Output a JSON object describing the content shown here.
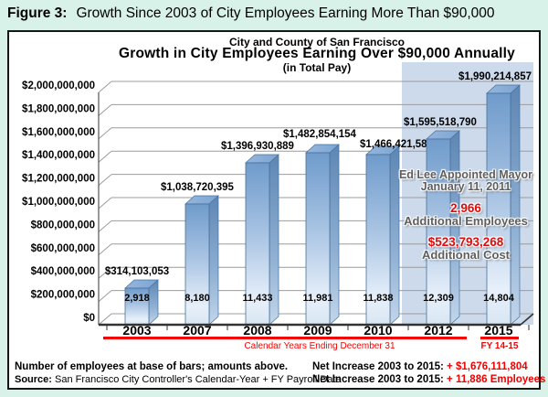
{
  "figure_title": {
    "label": "Figure 3:",
    "text": "Growth Since 2003 of City Employees Earning More Than $90,000"
  },
  "chart_titles": {
    "line1": "City and County of San Francisco",
    "line2": "Growth in City Employees Earning Over $90,000 Annually",
    "line3": "(in Total Pay)"
  },
  "chart_data": {
    "type": "bar",
    "title": "Growth in City Employees Earning Over $90,000 Annually (in Total Pay)",
    "categories": [
      "2003",
      "2007",
      "2008",
      "2009",
      "2010",
      "2012",
      "2015"
    ],
    "values": [
      314103053,
      1038720395,
      1396930889,
      1482854154,
      1466421588,
      1595518790,
      1990214857
    ],
    "value_labels": [
      "$314,103,053",
      "$1,038,720,395",
      "$1,396,930,889",
      "$1,482,854,154",
      "$1,466,421,588",
      "$1,595,518,790",
      "$1,990,214,857"
    ],
    "employee_counts": [
      "2,918",
      "8,180",
      "11,433",
      "11,981",
      "11,838",
      "12,309",
      "14,804"
    ],
    "y_ticks": [
      "$0",
      "$200,000,000",
      "$400,000,000",
      "$600,000,000",
      "$800,000,000",
      "$1,000,000,000",
      "$1,200,000,000",
      "$1,400,000,000",
      "$1,600,000,000",
      "$1,800,000,000",
      "$2,000,000,000"
    ],
    "ylim": [
      0,
      2000000000
    ],
    "xlabel": "Calendar Years Ending December 31",
    "highlighted_categories": [
      "2012",
      "2015"
    ],
    "legend": "none",
    "grid": "horizontal"
  },
  "axis_footnotes": {
    "calendar_label": "Calendar Years Ending December 31",
    "fy_label": "FY 14-15"
  },
  "annotation": {
    "line1": "Ed Lee Appointed Mayor",
    "line2": "January  11, 2011",
    "employees_value": "2,966",
    "employees_label": "Additional Employees",
    "cost_value": "$523,793,268",
    "cost_label": "Additional Cost"
  },
  "footer": {
    "note": "Number of employees at base of bars; amounts above.",
    "source_label": "Source:",
    "source_text": "San Francisco City Controller's Calendar-Year + FY Payroll Data",
    "net_cost_label": "Net Increase 2003 to 2015:",
    "net_cost_value": "+ $1,676,111,804",
    "net_emp_label": "Net Increase 2003 to 2015:",
    "net_emp_value": "+ 11,886 Employees"
  },
  "colors": {
    "page_background": "#d9f2e9",
    "chart_background": "#ffffff",
    "highlight_band": "#ccdaeb",
    "bar_front_top": "#6f9bcb",
    "bar_front_bottom": "#d8e6f3",
    "bar_outline": "#46719e",
    "gridline": "#9c9c9c",
    "accent_red": "#f40000",
    "annotation_gray": "#5e5e5e"
  }
}
